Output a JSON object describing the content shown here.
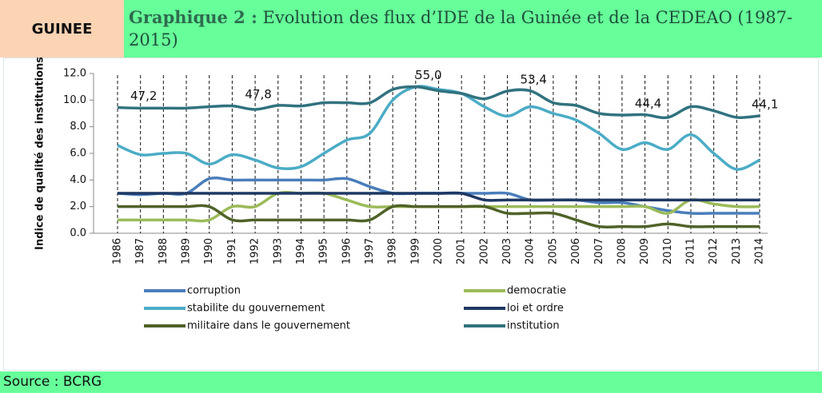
{
  "header": {
    "country": "GUINEE",
    "title_label": "Graphique 2 :",
    "title": "Evolution des flux d’IDE de la Guinée et de la CEDEAO (1987-2015)"
  },
  "chart_data": {
    "type": "line",
    "y_label": "Indice de qualité des institutions",
    "categories": [
      "1986",
      "1987",
      "1988",
      "1989",
      "1990",
      "1991",
      "1992",
      "1993",
      "1994",
      "1995",
      "1996",
      "1997",
      "1998",
      "1999",
      "2000",
      "2001",
      "2002",
      "2003",
      "2004",
      "2005",
      "2006",
      "2007",
      "2008",
      "2009",
      "2010",
      "2011",
      "2012",
      "2013",
      "2014"
    ],
    "ylim": [
      0,
      12
    ],
    "yticks": [
      {
        "value": 0,
        "label": "0.0"
      },
      {
        "value": 2,
        "label": "2.0"
      },
      {
        "value": 4,
        "label": "4.0"
      },
      {
        "value": 6,
        "label": "6.0"
      },
      {
        "value": 8,
        "label": "8.0"
      },
      {
        "value": 10,
        "label": "10.0"
      },
      {
        "value": 12,
        "label": "12.0"
      }
    ],
    "series": [
      {
        "name": "corruption",
        "color": "#4a7ebb",
        "values": [
          3,
          2.9,
          3,
          3,
          4.1,
          4,
          4,
          4,
          4,
          4,
          4.1,
          3.5,
          3,
          3,
          3,
          3,
          3,
          3,
          2.5,
          2.5,
          2.5,
          2.3,
          2.3,
          2,
          1.7,
          1.5,
          1.5,
          1.5,
          1.5
        ]
      },
      {
        "name": "democratie",
        "color": "#9bbb59",
        "values": [
          1,
          1,
          1,
          1,
          1,
          2,
          2,
          3,
          3,
          3,
          2.5,
          2,
          2,
          2,
          2,
          2,
          2,
          2,
          2,
          2,
          2,
          2,
          2,
          2,
          1.5,
          2.5,
          2.2,
          2,
          2
        ]
      },
      {
        "name": "stabilite du gouvernement",
        "color": "#4bacc6",
        "values": [
          6.6,
          5.9,
          6,
          6,
          5.2,
          5.9,
          5.5,
          4.9,
          5,
          6,
          7,
          7.5,
          10,
          11,
          10.8,
          10.5,
          9.5,
          8.8,
          9.5,
          9,
          8.5,
          7.5,
          6.3,
          6.8,
          6.3,
          7.4,
          6,
          4.8,
          5.5
        ]
      },
      {
        "name": "loi et ordre",
        "color": "#1f3864",
        "values": [
          3,
          3,
          3,
          3,
          3,
          3,
          3,
          3,
          3,
          3,
          3,
          3,
          3,
          3,
          3,
          3,
          2.5,
          2.5,
          2.5,
          2.5,
          2.5,
          2.5,
          2.5,
          2.5,
          2.5,
          2.5,
          2.5,
          2.5,
          2.5
        ]
      },
      {
        "name": "militaire dans le gouvernement",
        "color": "#4f6228",
        "values": [
          2,
          2,
          2,
          2,
          2,
          1,
          1,
          1,
          1,
          1,
          1,
          1,
          2,
          2,
          2,
          2,
          2,
          1.5,
          1.5,
          1.5,
          1,
          0.5,
          0.5,
          0.5,
          0.7,
          0.5,
          0.5,
          0.5,
          0.5
        ]
      },
      {
        "name": "institution",
        "color": "#31727f",
        "values": [
          9.44,
          9.4,
          9.4,
          9.4,
          9.5,
          9.56,
          9.3,
          9.6,
          9.56,
          9.8,
          9.8,
          9.8,
          10.8,
          11,
          10.7,
          10.5,
          10.1,
          10.68,
          10.7,
          9.8,
          9.6,
          9,
          8.88,
          8.9,
          8.7,
          9.5,
          9.2,
          8.7,
          8.82
        ]
      }
    ],
    "annotations": [
      "47,2",
      "47,8",
      "55,0",
      "53,4",
      "44,4",
      "44,1"
    ]
  },
  "footer": {
    "source": "Source : BCRG"
  }
}
